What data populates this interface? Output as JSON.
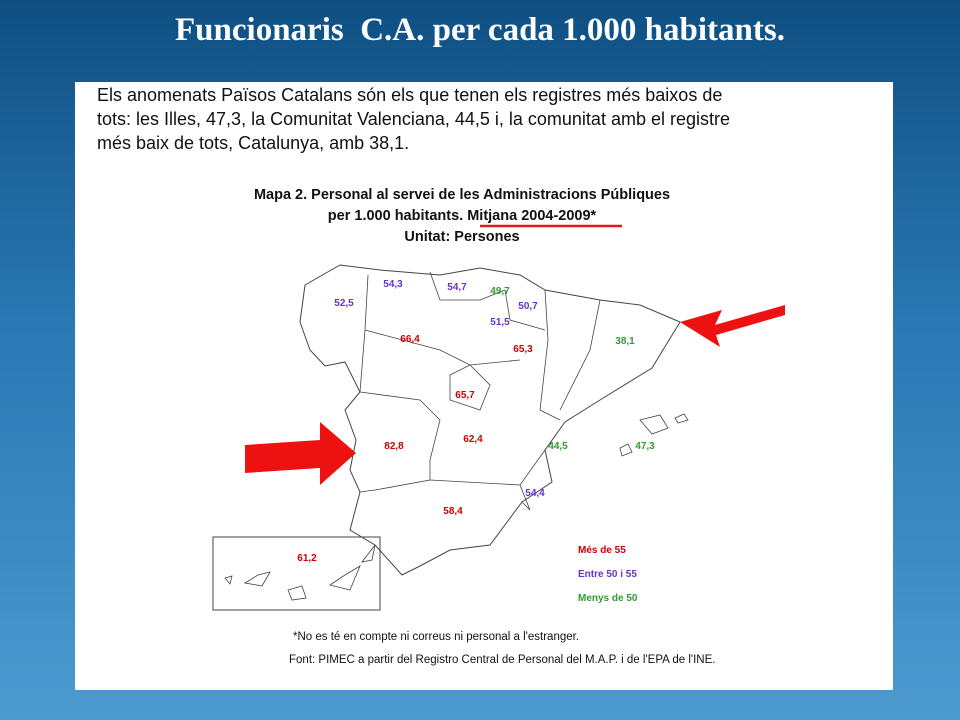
{
  "header": {
    "title": "Funcionaris  C.A. per cada 1.000 habitants."
  },
  "intro": [
    "Els anomenats Països Catalans són els que tenen els registres més baixos de",
    "tots: les Illes, 47,3, la Comunitat Valenciana, 44,5 i, la comunitat amb el registre",
    "més baix de tots, Catalunya, amb 38,1."
  ],
  "map": {
    "title": [
      "Mapa 2. Personal al servei de les Administracions Públiques",
      "per 1.000 habitants.  Mitjana 2004-2009*",
      "Unitat: Persones"
    ],
    "regions": [
      {
        "label": "52,5",
        "color": "#6633cc"
      },
      {
        "label": "54,3",
        "color": "#6633cc"
      },
      {
        "label": "54,7",
        "color": "#6633cc"
      },
      {
        "label": "49,7",
        "color": "#339933"
      },
      {
        "label": "50,7",
        "color": "#6633cc"
      },
      {
        "label": "51,5",
        "color": "#6633cc"
      },
      {
        "label": "66,4",
        "color": "#cc0000"
      },
      {
        "label": "65,3",
        "color": "#cc0000"
      },
      {
        "label": "38,1",
        "color": "#339933"
      },
      {
        "label": "65,7",
        "color": "#cc0000"
      },
      {
        "label": "82,8",
        "color": "#cc0000"
      },
      {
        "label": "62,4",
        "color": "#cc0000"
      },
      {
        "label": "44,5",
        "color": "#339933"
      },
      {
        "label": "47,3",
        "color": "#339933"
      },
      {
        "label": "54,4",
        "color": "#6633cc"
      },
      {
        "label": "58,4",
        "color": "#cc0000"
      },
      {
        "label": "61,2",
        "color": "#cc0000"
      }
    ],
    "legend": [
      {
        "label": "Més de 55",
        "color": "#cc0000"
      },
      {
        "label": "Entre 50 i 55",
        "color": "#6633cc"
      },
      {
        "label": "Menys de 50",
        "color": "#339933"
      }
    ],
    "notes": [
      "*No es té en compte ni correus ni personal a l'estranger.",
      "Font: PIMEC a partir del Registro Central de Personal del M.A.P. i de l'EPA de l'INE."
    ]
  }
}
